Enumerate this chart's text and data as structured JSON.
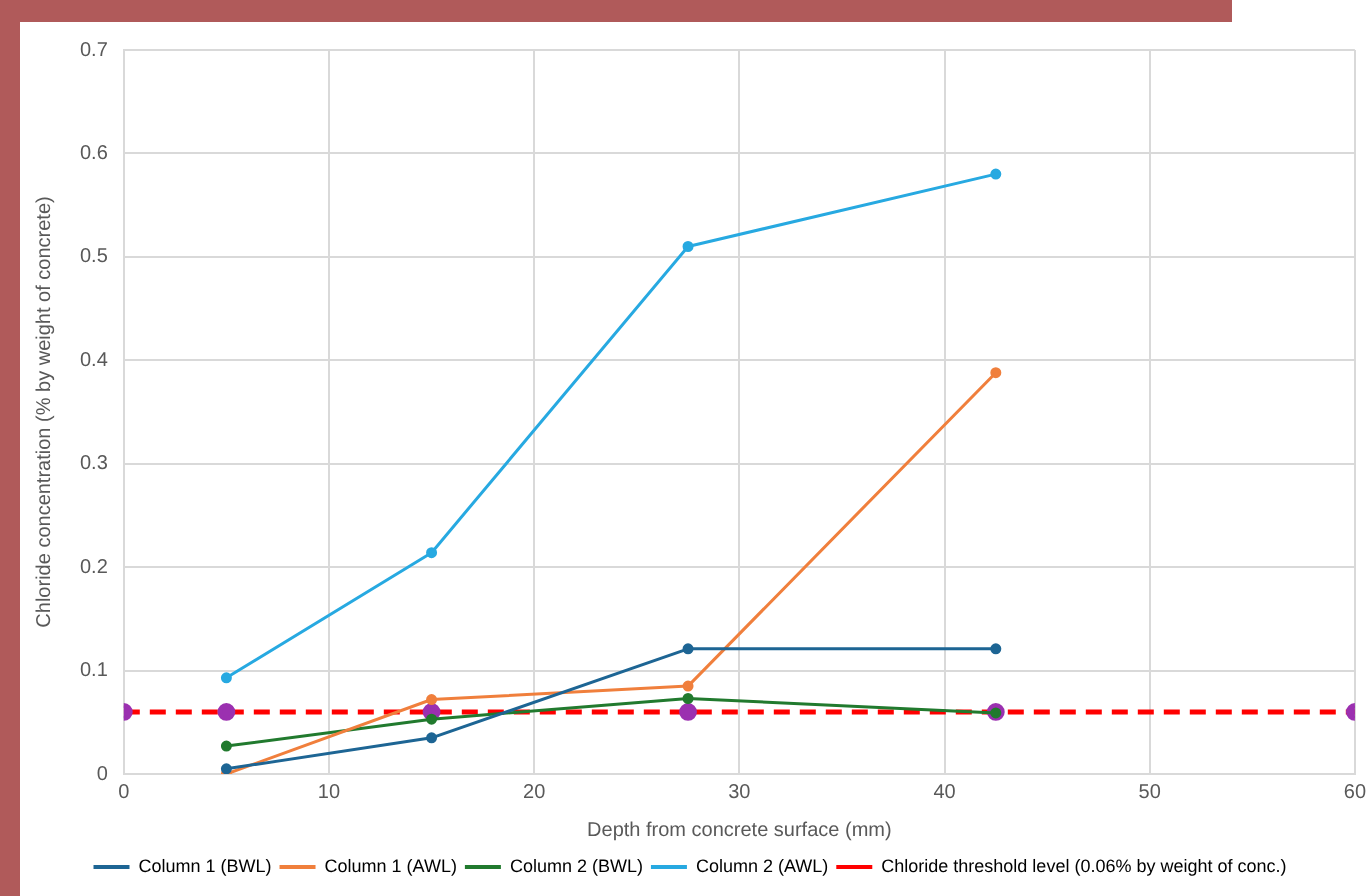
{
  "chart_data": {
    "type": "line",
    "xlabel": "Depth from concrete surface (mm)",
    "ylabel": "Chloride concentration (% by weight of concrete)",
    "x": [
      5,
      15,
      27.5,
      42.5
    ],
    "series": [
      {
        "name": "Column 1 (BWL)",
        "color": "#1d6594",
        "values": [
          0.005,
          0.035,
          0.121,
          0.121
        ]
      },
      {
        "name": "Column 1 (AWL)",
        "color": "#f07f3c",
        "values": [
          0,
          0.072,
          0.085,
          0.388
        ]
      },
      {
        "name": "Column 2 (BWL)",
        "color": "#217a2e",
        "values": [
          0.027,
          0.053,
          0.073,
          0.059
        ]
      },
      {
        "name": "Column 2 (AWL)",
        "color": "#27a9e1",
        "values": [
          0.093,
          0.214,
          0.51,
          0.58
        ]
      },
      {
        "name": "Chloride threshold level (0.06% by weight of conc.)",
        "color": "#ff0000",
        "colors": [
          "#9b30b0",
          "#9b30b0",
          "#9b30b0",
          "#9b30b0",
          "#9b30b0",
          "#9b30b0"
        ],
        "line_style": "dashed",
        "x": [
          0,
          5,
          15,
          27.5,
          42.5,
          60
        ],
        "values": [
          0.06,
          0.06,
          0.06,
          0.06,
          0.06,
          0.06
        ]
      }
    ],
    "xlim": [
      0,
      60
    ],
    "xticks": [
      0,
      10,
      20,
      30,
      40,
      50,
      60
    ],
    "ylim": [
      0,
      0.7
    ],
    "yticks": [
      0,
      0.1,
      0.2,
      0.3,
      0.4,
      0.5,
      0.6,
      0.7
    ],
    "grid": true,
    "legend": "bottom",
    "marker": "circle",
    "line_style": "solid"
  }
}
